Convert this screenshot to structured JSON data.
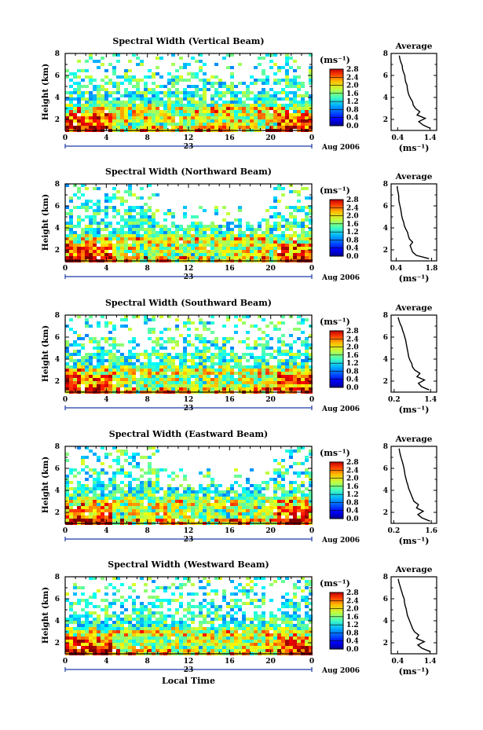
{
  "chart_data": [
    {
      "type": "heatmap",
      "title": "Spectral Width (Vertical Beam)",
      "ylabel": "Height (km)",
      "x_ticks": [
        "0",
        "4",
        "8",
        "12",
        "16",
        "20",
        "0"
      ],
      "y_ticks": [
        "2",
        "4",
        "6",
        "8"
      ],
      "xlim": [
        0,
        24
      ],
      "ylim": [
        1,
        8
      ],
      "date_day": "23",
      "date_month": "Aug 2006",
      "colorbar": {
        "unit": "(ms⁻¹)",
        "ticks": [
          "0.0",
          "0.4",
          "0.8",
          "1.2",
          "1.6",
          "2.0",
          "2.4",
          "2.8"
        ],
        "range": [
          0,
          2.8
        ]
      },
      "profile": {
        "title": "Average",
        "xlabel": "(ms⁻¹)",
        "x_ticks": [
          "0.4",
          "1.4"
        ],
        "xlim": [
          0.2,
          1.6
        ],
        "y_ticks": [
          "2",
          "4",
          "6",
          "8"
        ],
        "height": [
          1.2,
          1.5,
          1.8,
          2.1,
          2.4,
          2.7,
          3.0,
          3.3,
          3.6,
          3.9,
          4.2,
          4.5,
          4.8,
          5.1,
          5.4,
          5.7,
          6.0,
          6.3,
          6.6,
          6.9,
          7.2,
          7.5,
          7.8
        ],
        "value": [
          1.4,
          1.18,
          1.05,
          1.25,
          1.0,
          1.08,
          0.95,
          0.88,
          0.86,
          0.8,
          0.75,
          0.72,
          0.7,
          0.69,
          0.65,
          0.63,
          0.62,
          0.58,
          0.55,
          0.54,
          0.5,
          0.47,
          0.45
        ]
      }
    },
    {
      "type": "heatmap",
      "title": "Spectral Width (Northward Beam)",
      "ylabel": "Height (km)",
      "x_ticks": [
        "0",
        "4",
        "8",
        "12",
        "16",
        "20",
        "0"
      ],
      "y_ticks": [
        "2",
        "4",
        "6",
        "8"
      ],
      "xlim": [
        0,
        24
      ],
      "ylim": [
        1,
        8
      ],
      "date_day": "23",
      "date_month": "Aug 2006",
      "colorbar": {
        "unit": "(ms⁻¹)",
        "ticks": [
          "0.0",
          "0.4",
          "0.8",
          "1.2",
          "1.6",
          "2.0",
          "2.4",
          "2.8"
        ],
        "range": [
          0,
          2.8
        ]
      },
      "profile": {
        "title": "Average",
        "xlabel": "(ms⁻¹)",
        "x_ticks": [
          "0.4",
          "1.8"
        ],
        "xlim": [
          0.2,
          2.0
        ],
        "y_ticks": [
          "2",
          "4",
          "6",
          "8"
        ],
        "height": [
          1.2,
          1.5,
          1.8,
          2.1,
          2.4,
          2.7,
          3.0,
          3.3,
          3.6,
          3.9,
          4.2,
          4.5,
          4.8,
          5.1,
          5.4,
          5.7,
          6.0,
          6.3,
          6.6,
          6.9,
          7.2,
          7.5,
          7.8
        ],
        "value": [
          1.7,
          1.2,
          1.05,
          1.0,
          0.95,
          1.05,
          0.92,
          0.88,
          0.85,
          0.78,
          0.72,
          0.7,
          0.65,
          0.62,
          0.6,
          0.58,
          0.55,
          0.52,
          0.5,
          0.5,
          0.48,
          0.45,
          0.44
        ]
      }
    },
    {
      "type": "heatmap",
      "title": "Spectral Width (Southward Beam)",
      "ylabel": "Height (km)",
      "x_ticks": [
        "0",
        "4",
        "8",
        "12",
        "16",
        "20",
        "0"
      ],
      "y_ticks": [
        "2",
        "4",
        "6",
        "8"
      ],
      "xlim": [
        0,
        24
      ],
      "ylim": [
        1,
        8
      ],
      "date_day": "23",
      "date_month": "Aug 2006",
      "colorbar": {
        "unit": "(ms⁻¹)",
        "ticks": [
          "0.0",
          "0.4",
          "0.8",
          "1.2",
          "1.6",
          "2.0",
          "2.4",
          "2.8"
        ],
        "range": [
          0,
          2.8
        ]
      },
      "profile": {
        "title": "Average",
        "xlabel": "(ms⁻¹)",
        "x_ticks": [
          "0.2",
          "1.4"
        ],
        "xlim": [
          0.1,
          1.6
        ],
        "y_ticks": [
          "2",
          "4",
          "6",
          "8"
        ],
        "height": [
          1.2,
          1.5,
          1.8,
          2.1,
          2.4,
          2.7,
          3.0,
          3.3,
          3.6,
          3.9,
          4.2,
          4.5,
          4.8,
          5.1,
          5.4,
          5.7,
          6.0,
          6.3,
          6.6,
          6.9,
          7.2,
          7.5,
          7.8
        ],
        "value": [
          1.35,
          1.1,
          1.0,
          1.2,
          0.95,
          1.05,
          0.88,
          0.8,
          0.78,
          0.72,
          0.68,
          0.66,
          0.64,
          0.62,
          0.6,
          0.58,
          0.55,
          0.52,
          0.48,
          0.45,
          0.4,
          0.36,
          0.33
        ]
      }
    },
    {
      "type": "heatmap",
      "title": "Spectral Width (Eastward Beam)",
      "ylabel": "Height (km)",
      "x_ticks": [
        "0",
        "4",
        "8",
        "12",
        "16",
        "20",
        "0"
      ],
      "y_ticks": [
        "2",
        "4",
        "6",
        "8"
      ],
      "xlim": [
        0,
        24
      ],
      "ylim": [
        1,
        8
      ],
      "date_day": "23",
      "date_month": "Aug 2006",
      "colorbar": {
        "unit": "(ms⁻¹)",
        "ticks": [
          "0.0",
          "0.4",
          "0.8",
          "1.2",
          "1.6",
          "2.0",
          "2.4",
          "2.8"
        ],
        "range": [
          0,
          2.8
        ]
      },
      "profile": {
        "title": "Average",
        "xlabel": "(ms⁻¹)",
        "x_ticks": [
          "0.2",
          "1.6"
        ],
        "xlim": [
          0.1,
          1.8
        ],
        "y_ticks": [
          "2",
          "4",
          "6",
          "8"
        ],
        "height": [
          1.2,
          1.5,
          1.8,
          2.1,
          2.4,
          2.7,
          3.0,
          3.3,
          3.6,
          3.9,
          4.2,
          4.5,
          4.8,
          5.1,
          5.4,
          5.7,
          6.0,
          6.3,
          6.6,
          6.9,
          7.2,
          7.5,
          7.8
        ],
        "value": [
          1.55,
          1.25,
          1.1,
          1.3,
          1.05,
          1.12,
          0.95,
          0.9,
          0.85,
          0.8,
          0.75,
          0.72,
          0.68,
          0.65,
          0.62,
          0.6,
          0.58,
          0.55,
          0.52,
          0.48,
          0.45,
          0.42,
          0.4
        ]
      }
    },
    {
      "type": "heatmap",
      "title": "Spectral Width (Westward Beam)",
      "ylabel": "Height (km)",
      "xlabel": "Local Time",
      "x_ticks": [
        "0",
        "4",
        "8",
        "12",
        "16",
        "20",
        "0"
      ],
      "y_ticks": [
        "2",
        "4",
        "6",
        "8"
      ],
      "xlim": [
        0,
        24
      ],
      "ylim": [
        1,
        8
      ],
      "date_day": "23",
      "date_month": "Aug 2006",
      "colorbar": {
        "unit": "(ms⁻¹)",
        "ticks": [
          "0.0",
          "0.4",
          "0.8",
          "1.2",
          "1.6",
          "2.0",
          "2.4",
          "2.8"
        ],
        "range": [
          0,
          2.8
        ]
      },
      "profile": {
        "title": "Average",
        "xlabel": "(ms⁻¹)",
        "x_ticks": [
          "0.4",
          "1.4"
        ],
        "xlim": [
          0.2,
          1.6
        ],
        "y_ticks": [
          "2",
          "4",
          "6",
          "8"
        ],
        "height": [
          1.2,
          1.5,
          1.8,
          2.1,
          2.4,
          2.7,
          3.0,
          3.3,
          3.6,
          3.9,
          4.2,
          4.5,
          4.8,
          5.1,
          5.4,
          5.7,
          6.0,
          6.3,
          6.6,
          6.9,
          7.2,
          7.5,
          7.8
        ],
        "value": [
          1.4,
          1.15,
          1.02,
          1.22,
          0.98,
          1.05,
          0.92,
          0.86,
          0.82,
          0.78,
          0.74,
          0.7,
          0.68,
          0.66,
          0.63,
          0.61,
          0.6,
          0.56,
          0.53,
          0.5,
          0.47,
          0.44,
          0.42
        ]
      }
    }
  ]
}
